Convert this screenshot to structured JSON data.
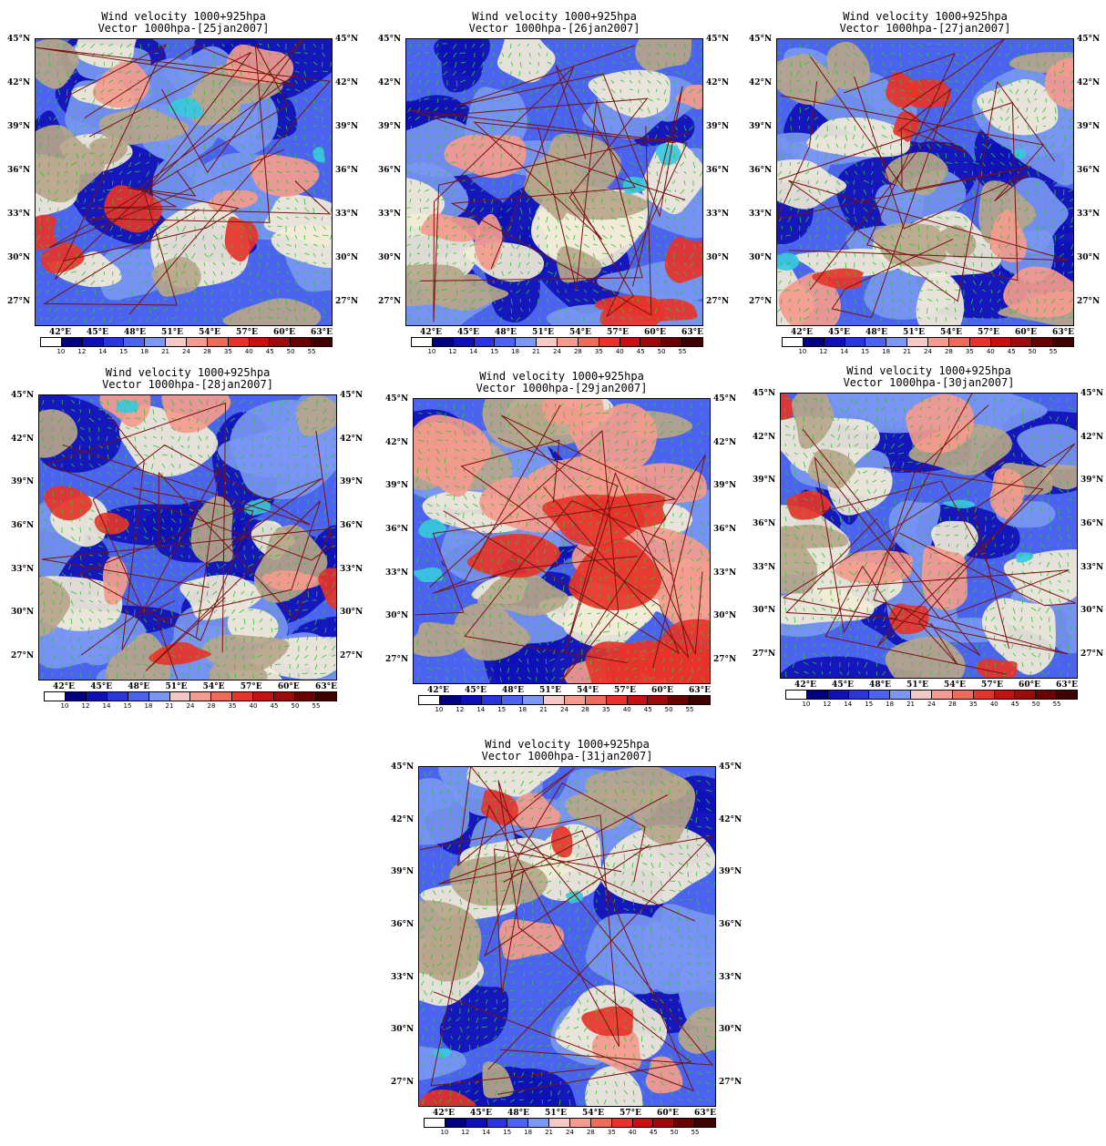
{
  "figure": {
    "panels": [
      {
        "title": "Wind velocity 1000+925hpa",
        "subtitle": "Vector 1000hpa-[25jan2007]",
        "date": "25jan2007"
      },
      {
        "title": "Wind velocity 1000+925hpa",
        "subtitle": "Vector 1000hpa-[26jan2007]",
        "date": "26jan2007"
      },
      {
        "title": "Wind velocity 1000+925hpa",
        "subtitle": "Vector 1000hpa-[27jan2007]",
        "date": "27jan2007"
      },
      {
        "title": "Wind velocity 1000+925hpa",
        "subtitle": "Vector 1000hpa-[28jan2007]",
        "date": "28jan2007"
      },
      {
        "title": "Wind velocity 1000+925hpa",
        "subtitle": "Vector 1000hpa-[29jan2007]",
        "date": "29jan2007"
      },
      {
        "title": "Wind velocity 1000+925hpa",
        "subtitle": "Vector 1000hpa-[30jan2007]",
        "date": "30jan2007"
      },
      {
        "title": "Wind velocity 1000+925hpa",
        "subtitle": "Vector 1000hpa-[31jan2007]",
        "date": "31jan2007"
      }
    ],
    "lat_ticks": [
      "45°N",
      "42°N",
      "39°N",
      "36°N",
      "33°N",
      "30°N",
      "27°N"
    ],
    "lon_ticks": [
      "42°E",
      "45°E",
      "48°E",
      "51°E",
      "54°E",
      "57°E",
      "60°E",
      "63°E"
    ],
    "colorbar": {
      "labels": [
        "10",
        "12",
        "14",
        "15",
        "18",
        "21",
        "24",
        "28",
        "35",
        "40",
        "45",
        "50",
        "55"
      ],
      "colors": [
        "#ffffff",
        "#000080",
        "#1010b8",
        "#2a35dd",
        "#4b63f0",
        "#7b96f5",
        "#f5c8c8",
        "#f59a8e",
        "#f06a5a",
        "#e8322a",
        "#c81010",
        "#9c0a0a",
        "#6a0000",
        "#400000"
      ]
    },
    "field_colors": {
      "calm": "#f2ecd8",
      "terrain": "#b8a58c",
      "light_blue": "#7b96f5",
      "blue": "#4b63f0",
      "deep_blue": "#1010b8",
      "cyan": "#38c8e0",
      "pink": "#f59a8e",
      "red": "#e8322a",
      "vector": "#22cc22",
      "border": "#7a1010"
    }
  }
}
